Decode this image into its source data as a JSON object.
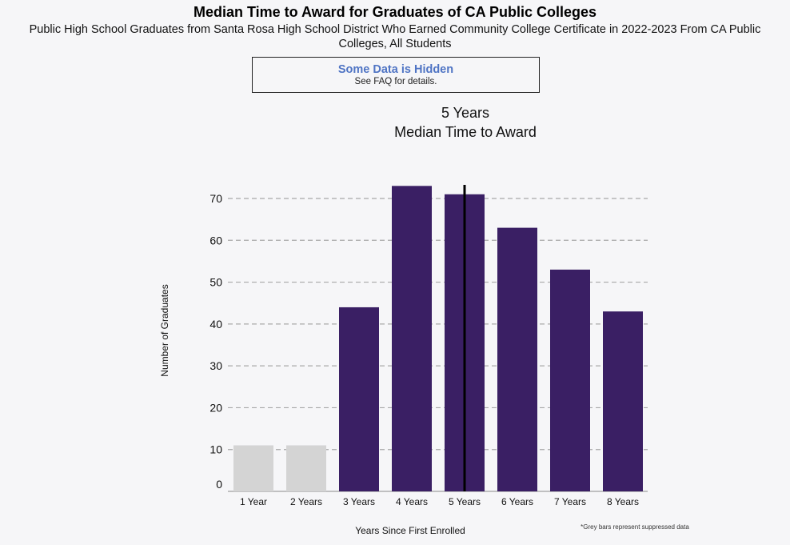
{
  "title": "Median Time to Award for Graduates of CA Public Colleges",
  "subtitle": "Public High School Graduates from Santa Rosa High School District Who Earned Community College Certificate in 2022-2023 From CA Public Colleges, All Students",
  "notice": {
    "heading": "Some Data is Hidden",
    "detail": "See FAQ for details."
  },
  "footnote": "*Grey bars represent suppressed data",
  "colors": {
    "bar": "#3a1f64",
    "suppressed": "#d4d4d4",
    "median_line": "#000000",
    "grid": "#a8a8a8"
  },
  "chart_data": {
    "type": "bar",
    "categories": [
      "1 Year",
      "2 Years",
      "3 Years",
      "4 Years",
      "5 Years",
      "6 Years",
      "7 Years",
      "8 Years"
    ],
    "values": [
      11,
      11,
      44,
      73,
      71,
      63,
      53,
      43
    ],
    "suppressed": [
      true,
      true,
      false,
      false,
      false,
      false,
      false,
      false
    ],
    "median": {
      "category": "5 Years",
      "value_label": "5 Years",
      "caption": "Median Time to Award"
    },
    "xlabel": "Years Since First Enrolled",
    "ylabel": "Number of Graduates",
    "yticks": [
      0,
      10,
      20,
      30,
      40,
      50,
      60,
      70
    ],
    "ylim": [
      0,
      70
    ],
    "grid": true
  }
}
